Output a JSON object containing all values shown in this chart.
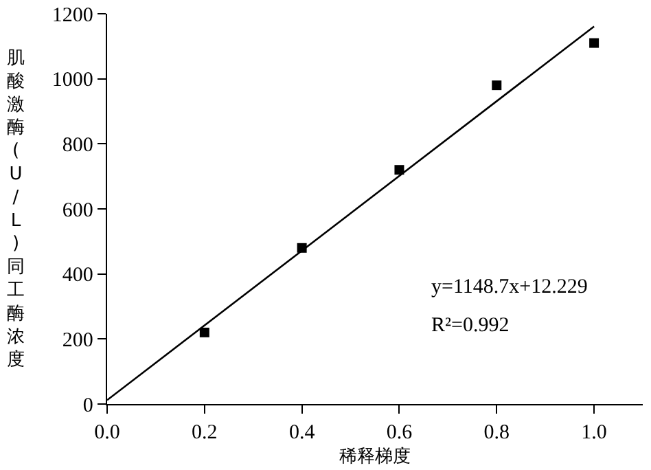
{
  "chart_data": {
    "type": "scatter",
    "xlabel": "稀释梯度",
    "ylabel": "肌酸激酶(U/L)同工酶浓度",
    "grid": false,
    "xlim": [
      0,
      1.1
    ],
    "xticks": [
      {
        "value": 0,
        "label": "0.0"
      },
      {
        "value": 0.2,
        "label": "0.2"
      },
      {
        "value": 0.4,
        "label": "0.4"
      },
      {
        "value": 0.6,
        "label": "0.6"
      },
      {
        "value": 0.8,
        "label": "0.8"
      },
      {
        "value": 1,
        "label": "1.0"
      }
    ],
    "ylim": [
      0,
      1200
    ],
    "yticks": [
      0,
      200,
      400,
      600,
      800,
      1000,
      1200
    ],
    "series": [
      {
        "marker": "square",
        "color": "#000000",
        "x": [
          0.2,
          0.4,
          0.6,
          0.8,
          1.0
        ],
        "values": [
          220,
          480,
          720,
          980,
          1110
        ]
      },
      {
        "type": "line",
        "color": "#000000",
        "x": [
          0,
          1.0
        ],
        "values": [
          12,
          1161
        ]
      }
    ],
    "annotations": [
      "y=1148.7x+12.229",
      "R²=0.992"
    ]
  }
}
